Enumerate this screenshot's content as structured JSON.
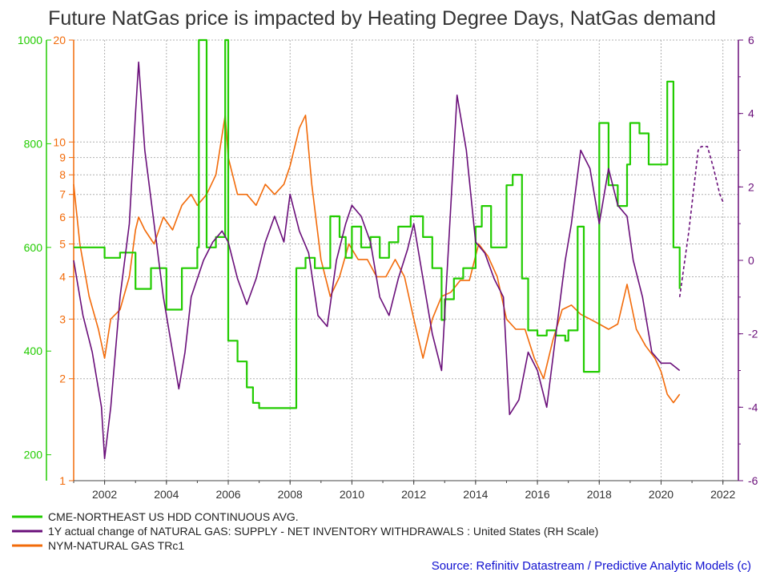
{
  "chart_data": {
    "type": "line",
    "title": "Future NatGas price is impacted by Heating Degree Days, NatGas demand",
    "colors": {
      "hdd": "#22cc00",
      "supply": "#6a0f7a",
      "price": "#f26b0a",
      "grid": "#b0b0b0",
      "source": "#1010d0"
    },
    "x_range": [
      2001.0,
      2022.5
    ],
    "x_ticks": [
      "2002",
      "2004",
      "2006",
      "2008",
      "2010",
      "2012",
      "2014",
      "2016",
      "2018",
      "2020",
      "2022"
    ],
    "hdd_axis": {
      "range": [
        150,
        1000
      ],
      "scale": "linear",
      "ticks": [
        "1000",
        "800",
        "600",
        "400",
        "200"
      ]
    },
    "price_axis": {
      "range": [
        1,
        20
      ],
      "scale": "log",
      "ticks": [
        "20",
        "10",
        "9",
        "8",
        "7",
        "6",
        "5",
        "4",
        "3",
        "2",
        "1"
      ]
    },
    "supply_axis": {
      "range": [
        -6,
        6
      ],
      "scale": "linear",
      "ticks": [
        "6",
        "4",
        "2",
        "0",
        "-2",
        "-4",
        "-6"
      ]
    },
    "series": [
      {
        "key": "hdd",
        "name": "CME-NORTHEAST US HDD CONTINUOUS AVG.",
        "axis": "hdd",
        "x": [
          2001.0,
          2001.5,
          2002.0,
          2002.5,
          2003.0,
          2003.5,
          2004.0,
          2004.5,
          2005.0,
          2005.05,
          2005.3,
          2005.6,
          2005.9,
          2006.0,
          2006.3,
          2006.6,
          2006.8,
          2007.0,
          2007.5,
          2008.0,
          2008.2,
          2008.5,
          2008.8,
          2009.0,
          2009.3,
          2009.6,
          2009.8,
          2010.0,
          2010.3,
          2010.6,
          2010.9,
          2011.2,
          2011.5,
          2011.9,
          2012.0,
          2012.3,
          2012.6,
          2012.9,
          2013.0,
          2013.3,
          2013.6,
          2013.9,
          2014.0,
          2014.2,
          2014.5,
          2014.8,
          2015.0,
          2015.2,
          2015.5,
          2015.7,
          2016.0,
          2016.3,
          2016.6,
          2016.9,
          2017.0,
          2017.3,
          2017.5,
          2017.8,
          2018.0,
          2018.3,
          2018.6,
          2018.9,
          2019.0,
          2019.3,
          2019.6,
          2019.9,
          2020.0,
          2020.2,
          2020.4,
          2020.6
        ],
        "values": [
          600,
          600,
          580,
          590,
          520,
          560,
          480,
          560,
          600,
          1000,
          600,
          620,
          1000,
          420,
          380,
          330,
          300,
          290,
          290,
          290,
          560,
          580,
          560,
          560,
          660,
          620,
          580,
          640,
          600,
          620,
          580,
          610,
          640,
          660,
          660,
          620,
          560,
          460,
          500,
          540,
          560,
          560,
          640,
          680,
          600,
          600,
          720,
          740,
          540,
          440,
          430,
          440,
          430,
          420,
          440,
          640,
          360,
          360,
          840,
          720,
          680,
          760,
          840,
          820,
          760,
          760,
          760,
          920,
          600,
          520
        ]
      },
      {
        "key": "supply",
        "name": "1Y actual change of NATURAL GAS: SUPPLY - NET INVENTORY WITHDRAWALS : United States (RH Scale)",
        "axis": "supply",
        "x": [
          2001.0,
          2001.3,
          2001.6,
          2001.9,
          2002.0,
          2002.2,
          2002.5,
          2002.8,
          2003.0,
          2003.1,
          2003.3,
          2003.6,
          2003.9,
          2004.1,
          2004.4,
          2004.6,
          2004.8,
          2005.2,
          2005.5,
          2005.8,
          2006.0,
          2006.3,
          2006.6,
          2006.9,
          2007.2,
          2007.5,
          2007.8,
          2008.0,
          2008.3,
          2008.6,
          2008.9,
          2009.2,
          2009.5,
          2009.8,
          2010.0,
          2010.3,
          2010.6,
          2010.9,
          2011.2,
          2011.5,
          2011.8,
          2012.0,
          2012.3,
          2012.6,
          2012.9,
          2013.1,
          2013.4,
          2013.7,
          2014.0,
          2014.3,
          2014.6,
          2014.9,
          2015.1,
          2015.4,
          2015.7,
          2016.0,
          2016.3,
          2016.6,
          2016.9,
          2017.1,
          2017.4,
          2017.7,
          2018.0,
          2018.3,
          2018.6,
          2018.9,
          2019.1,
          2019.4,
          2019.7,
          2020.0,
          2020.3,
          2020.6
        ],
        "values": [
          0,
          -1.5,
          -2.5,
          -4,
          -5.4,
          -4,
          -1,
          1,
          4,
          5.4,
          3,
          1,
          -1,
          -2,
          -3.5,
          -2.5,
          -1,
          0,
          0.5,
          0.8,
          0.5,
          -0.5,
          -1.2,
          -0.5,
          0.5,
          1.2,
          0.5,
          1.8,
          0.8,
          0.2,
          -1.5,
          -1.8,
          0,
          1,
          1.5,
          1.2,
          0.5,
          -1,
          -1.5,
          -0.5,
          0.3,
          1,
          -0.5,
          -2,
          -3,
          0,
          4.5,
          3,
          0.5,
          0.2,
          -0.5,
          -1,
          -4.2,
          -3.8,
          -2.5,
          -3,
          -4,
          -2,
          0,
          1,
          3,
          2.5,
          1,
          2.5,
          1.5,
          1.2,
          0,
          -1,
          -2.5,
          -2.8,
          -2.8,
          -3
        ]
      },
      {
        "key": "supply_forecast",
        "name": "",
        "axis": "supply",
        "x": [
          2020.6,
          2020.9,
          2021.2,
          2021.3,
          2021.5,
          2021.7,
          2021.9,
          2022.0
        ],
        "values": [
          -1,
          0.8,
          3.0,
          3.1,
          3.1,
          2.5,
          1.8,
          1.6
        ]
      },
      {
        "key": "price",
        "name": "NYM-NATURAL GAS TRc1",
        "axis": "price",
        "x": [
          2001.0,
          2001.2,
          2001.5,
          2001.8,
          2002.0,
          2002.2,
          2002.5,
          2002.8,
          2003.0,
          2003.1,
          2003.3,
          2003.6,
          2003.9,
          2004.2,
          2004.5,
          2004.8,
          2005.0,
          2005.3,
          2005.6,
          2005.9,
          2006.0,
          2006.3,
          2006.6,
          2006.9,
          2007.2,
          2007.5,
          2007.8,
          2008.0,
          2008.3,
          2008.5,
          2008.7,
          2009.0,
          2009.3,
          2009.6,
          2009.9,
          2010.2,
          2010.5,
          2010.8,
          2011.1,
          2011.4,
          2011.7,
          2012.0,
          2012.3,
          2012.6,
          2012.9,
          2013.2,
          2013.5,
          2013.8,
          2014.1,
          2014.4,
          2014.7,
          2015.0,
          2015.3,
          2015.6,
          2015.9,
          2016.2,
          2016.5,
          2016.8,
          2017.1,
          2017.4,
          2017.7,
          2018.0,
          2018.3,
          2018.6,
          2018.9,
          2019.2,
          2019.5,
          2019.8,
          2020.0,
          2020.2,
          2020.4,
          2020.6
        ],
        "values": [
          7.5,
          5,
          3.5,
          2.8,
          2.3,
          3,
          3.2,
          4,
          5.5,
          6,
          5.5,
          5,
          6,
          5.5,
          6.5,
          7,
          6.5,
          7,
          8,
          12,
          9,
          7,
          7,
          6.5,
          7.5,
          7,
          7.5,
          8.5,
          11,
          12,
          7.5,
          4.5,
          3.5,
          4,
          5,
          4.5,
          4.5,
          4,
          4,
          4.5,
          4,
          3,
          2.3,
          3,
          3.5,
          3.6,
          3.9,
          3.9,
          5,
          4.6,
          4,
          3,
          2.8,
          2.8,
          2.3,
          2.0,
          2.6,
          3.2,
          3.3,
          3.1,
          3.0,
          2.9,
          2.8,
          2.9,
          3.8,
          2.8,
          2.5,
          2.3,
          2.1,
          1.8,
          1.7,
          1.8
        ]
      }
    ]
  },
  "source": "Source: Refinitiv Datastream / Predictive Analytic Models (c)"
}
